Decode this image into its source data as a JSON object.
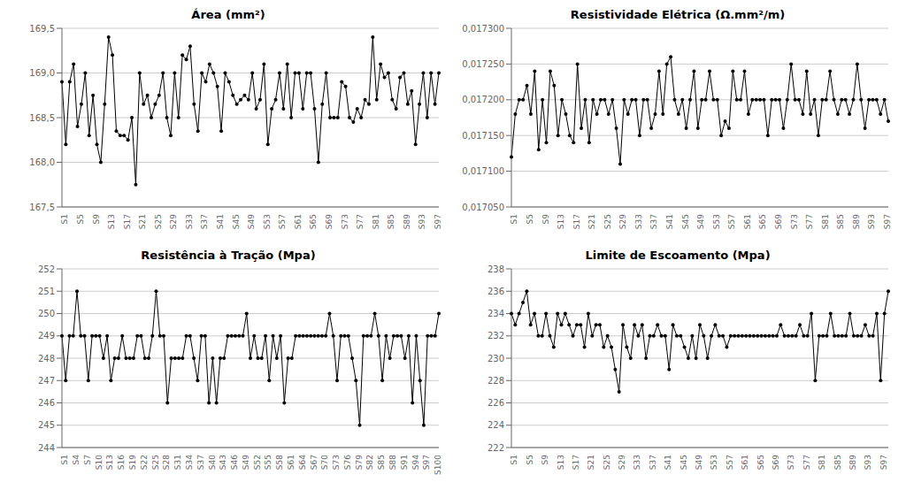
{
  "chart_data": [
    {
      "type": "line",
      "title": "Área  (mm²)",
      "categories": [
        "S1",
        null,
        null,
        null,
        "S5",
        null,
        null,
        null,
        "S9",
        null,
        null,
        null,
        "S13",
        null,
        null,
        null,
        "S17",
        null,
        null,
        null,
        "S21",
        null,
        null,
        null,
        "S25",
        null,
        null,
        null,
        "S29",
        null,
        null,
        null,
        "S33",
        null,
        null,
        null,
        "S37",
        null,
        null,
        null,
        "S41",
        null,
        null,
        null,
        "S45",
        null,
        null,
        null,
        "S49",
        null,
        null,
        null,
        "S53",
        null,
        null,
        null,
        "S57",
        null,
        null,
        null,
        "S61",
        null,
        null,
        null,
        "S65",
        null,
        null,
        null,
        "S69",
        null,
        null,
        null,
        "S73",
        null,
        null,
        null,
        "S77",
        null,
        null,
        null,
        "S81",
        null,
        null,
        null,
        "S85",
        null,
        null,
        null,
        "S89",
        null,
        null,
        null,
        "S93",
        null,
        null,
        null,
        "S97",
        null
      ],
      "values": [
        168.9,
        168.2,
        168.9,
        169.1,
        168.4,
        168.65,
        169.0,
        168.3,
        168.75,
        168.2,
        168.0,
        168.65,
        169.4,
        169.2,
        168.35,
        168.3,
        168.3,
        168.25,
        168.5,
        167.75,
        169.0,
        168.65,
        168.75,
        168.5,
        168.65,
        168.75,
        169.0,
        168.5,
        168.3,
        169.0,
        168.5,
        169.2,
        169.15,
        169.3,
        168.65,
        168.35,
        169.0,
        168.9,
        169.1,
        169.0,
        168.85,
        168.35,
        169.0,
        168.9,
        168.75,
        168.65,
        168.7,
        168.75,
        168.7,
        169.0,
        168.6,
        168.7,
        169.1,
        168.2,
        168.6,
        168.7,
        169.0,
        168.6,
        169.1,
        168.5,
        169.0,
        169.0,
        168.6,
        169.0,
        169.0,
        168.6,
        168.0,
        168.65,
        169.0,
        168.5,
        168.5,
        168.5,
        168.9,
        168.85,
        168.5,
        168.45,
        168.6,
        168.5,
        168.7,
        168.65,
        169.4,
        168.7,
        169.1,
        168.95,
        169.0,
        168.7,
        168.6,
        168.95,
        169.0,
        168.65,
        168.8,
        168.2,
        168.65,
        169.0,
        168.5,
        169.0,
        168.65,
        169.0
      ],
      "color": "#000000",
      "marker": "circle",
      "ylim": [
        167.5,
        169.5
      ],
      "yticks": [
        {
          "value": 167.5,
          "label": "167,5"
        },
        {
          "value": 168.0,
          "label": "168,0"
        },
        {
          "value": 168.5,
          "label": "168,5"
        },
        {
          "value": 169.0,
          "label": "169,0"
        },
        {
          "value": 169.5,
          "label": "169,5"
        }
      ],
      "grid": true
    },
    {
      "type": "line",
      "title": "Resistividade Elétrica (Ω.mm²/m)",
      "categories": [
        "S1",
        null,
        null,
        null,
        "S5",
        null,
        null,
        null,
        "S9",
        null,
        null,
        null,
        "S13",
        null,
        null,
        null,
        "S17",
        null,
        null,
        null,
        "S21",
        null,
        null,
        null,
        "S25",
        null,
        null,
        null,
        "S29",
        null,
        null,
        null,
        "S33",
        null,
        null,
        null,
        "S37",
        null,
        null,
        null,
        "S41",
        null,
        null,
        null,
        "S45",
        null,
        null,
        null,
        "S49",
        null,
        null,
        null,
        "S53",
        null,
        null,
        null,
        "S57",
        null,
        null,
        null,
        "S61",
        null,
        null,
        null,
        "S65",
        null,
        null,
        null,
        "S69",
        null,
        null,
        null,
        "S73",
        null,
        null,
        null,
        "S77",
        null,
        null,
        null,
        "S81",
        null,
        null,
        null,
        "S85",
        null,
        null,
        null,
        "S89",
        null,
        null,
        null,
        "S93",
        null,
        null,
        null,
        "S97",
        null
      ],
      "values": [
        0.01712,
        0.01718,
        0.0172,
        0.0172,
        0.01722,
        0.01718,
        0.01724,
        0.01713,
        0.0172,
        0.01714,
        0.01724,
        0.01722,
        0.01715,
        0.0172,
        0.01718,
        0.01715,
        0.01714,
        0.01725,
        0.01716,
        0.0172,
        0.01714,
        0.0172,
        0.01718,
        0.0172,
        0.0172,
        0.01718,
        0.0172,
        0.01716,
        0.01711,
        0.0172,
        0.01718,
        0.0172,
        0.0172,
        0.01715,
        0.0172,
        0.0172,
        0.01716,
        0.01718,
        0.01724,
        0.01718,
        0.01725,
        0.01726,
        0.0172,
        0.01718,
        0.0172,
        0.01716,
        0.0172,
        0.01724,
        0.01716,
        0.0172,
        0.0172,
        0.01724,
        0.0172,
        0.0172,
        0.01715,
        0.01717,
        0.01716,
        0.01724,
        0.0172,
        0.0172,
        0.01724,
        0.01718,
        0.0172,
        0.0172,
        0.0172,
        0.0172,
        0.01715,
        0.0172,
        0.0172,
        0.0172,
        0.01716,
        0.0172,
        0.01725,
        0.0172,
        0.0172,
        0.01718,
        0.01724,
        0.01718,
        0.0172,
        0.01715,
        0.0172,
        0.0172,
        0.01724,
        0.0172,
        0.01718,
        0.0172,
        0.0172,
        0.01718,
        0.0172,
        0.01725,
        0.0172,
        0.01716,
        0.0172,
        0.0172,
        0.0172,
        0.01718,
        0.0172,
        0.01717
      ],
      "color": "#000000",
      "marker": "circle",
      "ylim": [
        0.01705,
        0.0173
      ],
      "yticks": [
        {
          "value": 0.01705,
          "label": "0,017050"
        },
        {
          "value": 0.0171,
          "label": "0,017100"
        },
        {
          "value": 0.01715,
          "label": "0,017150"
        },
        {
          "value": 0.0172,
          "label": "0,017200"
        },
        {
          "value": 0.01725,
          "label": "0,017250"
        },
        {
          "value": 0.0173,
          "label": "0,017300"
        }
      ],
      "grid": true
    },
    {
      "type": "line",
      "title": "Resistência à Tração  (Mpa)",
      "categories": [
        "S1",
        null,
        null,
        "S4",
        null,
        null,
        "S7",
        null,
        null,
        "S10",
        null,
        null,
        "S13",
        null,
        null,
        "S16",
        null,
        null,
        "S19",
        null,
        null,
        "S22",
        null,
        null,
        "S25",
        null,
        null,
        "S28",
        null,
        null,
        "S31",
        null,
        null,
        "S34",
        null,
        null,
        "S37",
        null,
        null,
        "S40",
        null,
        null,
        "S43",
        null,
        null,
        "S46",
        null,
        null,
        "S49",
        null,
        null,
        "S52",
        null,
        null,
        "S55",
        null,
        null,
        "S58",
        null,
        null,
        "S61",
        null,
        null,
        "S64",
        null,
        null,
        "S67",
        null,
        null,
        "S70",
        null,
        null,
        "S73",
        null,
        null,
        "S76",
        null,
        null,
        "S79",
        null,
        null,
        "S82",
        null,
        null,
        "S85",
        null,
        null,
        "S88",
        null,
        null,
        "S91",
        null,
        null,
        "S94",
        null,
        null,
        "S97",
        null,
        null,
        "S100",
        null
      ],
      "values": [
        249,
        247,
        249,
        249,
        251,
        249,
        249,
        247,
        249,
        249,
        249,
        248,
        249,
        247,
        248,
        248,
        249,
        248,
        248,
        248,
        249,
        249,
        248,
        248,
        249,
        251,
        249,
        249,
        246,
        248,
        248,
        248,
        248,
        249,
        249,
        248,
        247,
        249,
        249,
        246,
        248,
        246,
        248,
        248,
        249,
        249,
        249,
        249,
        249,
        250,
        248,
        249,
        248,
        248,
        249,
        247,
        249,
        248,
        249,
        246,
        248,
        248,
        249,
        249,
        249,
        249,
        249,
        249,
        249,
        249,
        249,
        250,
        249,
        247,
        249,
        249,
        249,
        248,
        247,
        245,
        249,
        249,
        249,
        250,
        249,
        247,
        249,
        248,
        249,
        249,
        249,
        248,
        249,
        246,
        249,
        247,
        245,
        249,
        249,
        249,
        250
      ],
      "color": "#000000",
      "marker": "circle",
      "ylim": [
        244,
        252
      ],
      "yticks": [
        244,
        245,
        246,
        247,
        248,
        249,
        250,
        251,
        252
      ],
      "grid": true
    },
    {
      "type": "line",
      "title": "Limite de  Escoamento  (Mpa)",
      "categories": [
        "S1",
        null,
        null,
        null,
        "S5",
        null,
        null,
        null,
        "S9",
        null,
        null,
        null,
        "S13",
        null,
        null,
        null,
        "S17",
        null,
        null,
        null,
        "S21",
        null,
        null,
        null,
        "S25",
        null,
        null,
        null,
        "S29",
        null,
        null,
        null,
        "S33",
        null,
        null,
        null,
        "S37",
        null,
        null,
        null,
        "S41",
        null,
        null,
        null,
        "S45",
        null,
        null,
        null,
        "S49",
        null,
        null,
        null,
        "S53",
        null,
        null,
        null,
        "S57",
        null,
        null,
        null,
        "S61",
        null,
        null,
        null,
        "S65",
        null,
        null,
        null,
        "S69",
        null,
        null,
        null,
        "S73",
        null,
        null,
        null,
        "S77",
        null,
        null,
        null,
        "S81",
        null,
        null,
        null,
        "S85",
        null,
        null,
        null,
        "S89",
        null,
        null,
        null,
        "S93",
        null,
        null,
        null,
        "S97",
        null,
        null
      ],
      "values": [
        234,
        233,
        234,
        235,
        236,
        233,
        234,
        232,
        232,
        234,
        232,
        231,
        234,
        233,
        234,
        233,
        232,
        233,
        233,
        231,
        234,
        232,
        233,
        233,
        231,
        232,
        231,
        229,
        227,
        233,
        231,
        230,
        233,
        232,
        233,
        230,
        232,
        232,
        233,
        232,
        232,
        229,
        233,
        232,
        232,
        231,
        230,
        232,
        230,
        233,
        232,
        230,
        232,
        233,
        232,
        232,
        231,
        232,
        232,
        232,
        232,
        232,
        232,
        232,
        232,
        232,
        232,
        232,
        232,
        232,
        233,
        232,
        232,
        232,
        232,
        233,
        232,
        232,
        234,
        228,
        232,
        232,
        232,
        234,
        232,
        232,
        232,
        232,
        234,
        232,
        232,
        232,
        233,
        232,
        232,
        234,
        228,
        234,
        236
      ],
      "color": "#000000",
      "marker": "circle",
      "ylim": [
        222,
        238
      ],
      "yticks": [
        222,
        224,
        226,
        228,
        230,
        232,
        234,
        236,
        238
      ],
      "grid": true
    }
  ]
}
